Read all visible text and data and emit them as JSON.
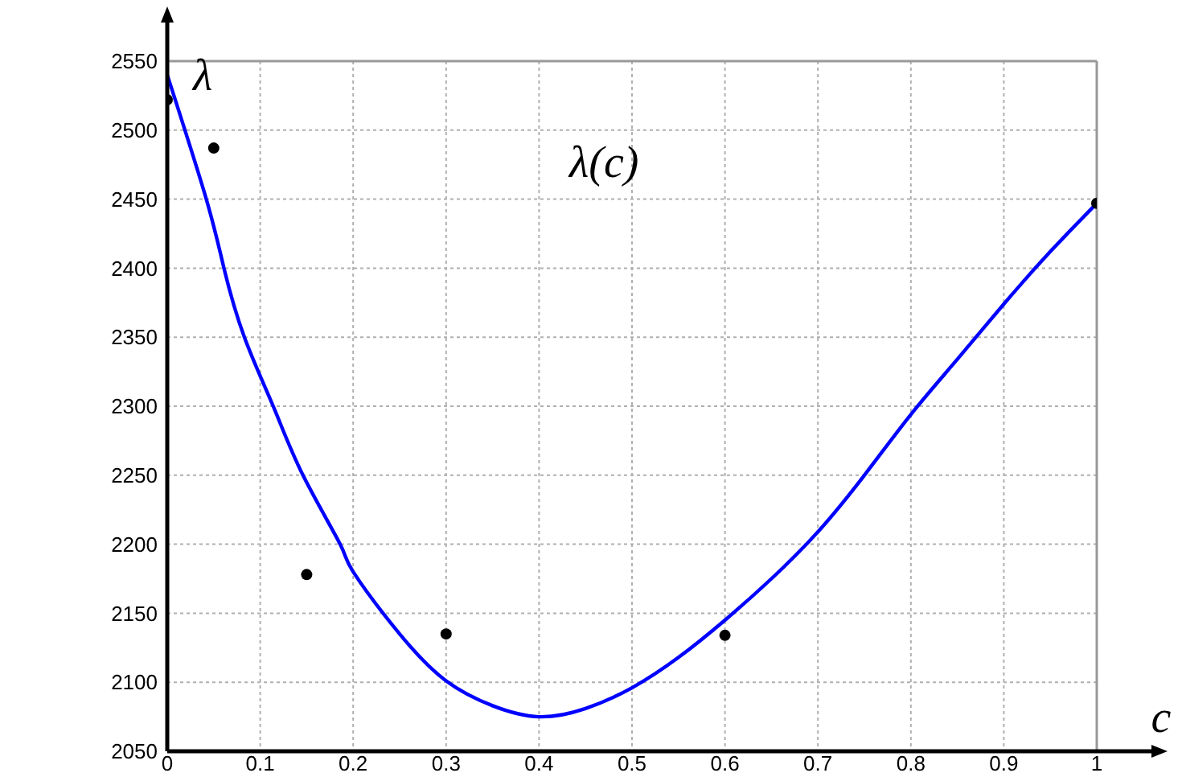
{
  "chart_data": {
    "type": "line",
    "xlabel": "c",
    "ylabel": "λ",
    "annotations": [
      "λ(c)"
    ],
    "xlim": [
      0,
      1
    ],
    "xticks": [
      0,
      0.1,
      0.2,
      0.3,
      0.4,
      0.5,
      0.6,
      0.7,
      0.8,
      0.9,
      1
    ],
    "ylim": [
      2050,
      2550
    ],
    "yticks": [
      2050,
      2100,
      2150,
      2200,
      2250,
      2300,
      2350,
      2400,
      2450,
      2500,
      2550
    ],
    "grid": true,
    "series": [
      {
        "color": "#0000ff",
        "marker": "none",
        "line_style": "solid",
        "x": [
          0,
          0.042,
          0.061,
          0.083,
          0.114,
          0.146,
          0.186,
          0.2,
          0.25,
          0.3,
          0.35,
          0.4,
          0.45,
          0.5,
          0.55,
          0.6,
          0.65,
          0.7,
          0.75,
          0.8,
          0.85,
          0.9,
          0.95,
          1
        ],
        "values": [
          2540,
          2450,
          2400,
          2350,
          2300,
          2250,
          2200,
          2180,
          2135,
          2101,
          2083,
          2075,
          2081,
          2096,
          2118,
          2145,
          2175,
          2209,
          2250,
          2294,
          2334,
          2374,
          2412,
          2447
        ]
      },
      {
        "type": "scatter",
        "color": "#000000",
        "marker": "circle",
        "x": [
          0,
          0.05,
          0.15,
          0.3,
          0.6,
          1
        ],
        "values": [
          2522,
          2487,
          2178,
          2135,
          2134,
          2447
        ]
      }
    ]
  }
}
